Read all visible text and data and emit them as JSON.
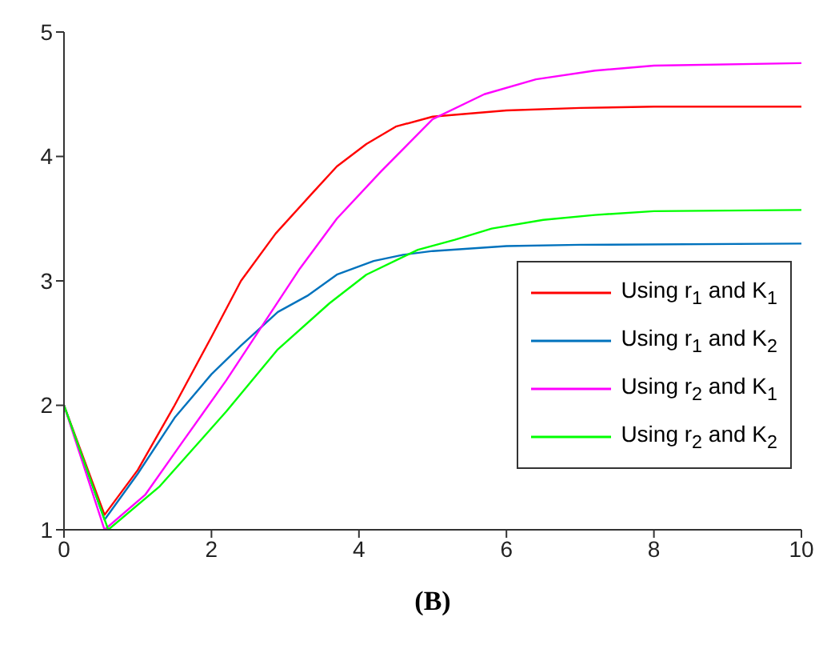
{
  "chart_data": {
    "type": "line",
    "xlabel": "(B)",
    "xlim": [
      0,
      10
    ],
    "xticks": [
      0,
      2,
      4,
      6,
      8,
      10
    ],
    "ylim": [
      1,
      5
    ],
    "yticks": [
      1,
      2,
      3,
      4,
      5
    ],
    "grid": false,
    "legend": "bottom right",
    "marker": "none",
    "line_style": "solid",
    "series": [
      {
        "name": "Using r$_{1}$ and K$_{1}$",
        "color": "#ff0000",
        "x": [
          0,
          0.55,
          1,
          1.5,
          2,
          2.4,
          2.87,
          3.36,
          3.7,
          4.1,
          4.5,
          5,
          6,
          7,
          8,
          10
        ],
        "values": [
          2,
          1.12,
          1.48,
          2.0,
          2.55,
          3.0,
          3.38,
          3.7,
          3.92,
          4.1,
          4.24,
          4.32,
          4.37,
          4.39,
          4.4,
          4.4
        ]
      },
      {
        "name": "Using r$_{1}$ and K$_{2}$",
        "color": "#0072bd",
        "x": [
          0,
          0.55,
          1,
          1.5,
          2,
          2.4,
          2.9,
          3.3,
          3.7,
          4.2,
          4.6,
          5,
          6,
          7,
          10
        ],
        "values": [
          2,
          1.08,
          1.45,
          1.9,
          2.25,
          2.48,
          2.75,
          2.88,
          3.05,
          3.16,
          3.21,
          3.24,
          3.28,
          3.29,
          3.3
        ]
      },
      {
        "name": "Using r$_{2}$ and K$_{1}$",
        "color": "#ff00ff",
        "x": [
          0,
          0.55,
          1.1,
          1.6,
          2.2,
          2.7,
          3.2,
          3.7,
          4.3,
          5,
          5.7,
          6.4,
          7.2,
          8,
          10
        ],
        "values": [
          2,
          1.0,
          1.28,
          1.7,
          2.2,
          2.65,
          3.1,
          3.5,
          3.88,
          4.3,
          4.5,
          4.62,
          4.69,
          4.73,
          4.75
        ]
      },
      {
        "name": "Using r$_{2}$ and K$_{2}$",
        "color": "#00ff00",
        "x": [
          0,
          0.6,
          1.3,
          2.2,
          2.9,
          3.6,
          4.1,
          4.8,
          5.3,
          5.8,
          6.5,
          7.2,
          8,
          10
        ],
        "values": [
          2,
          1.0,
          1.35,
          1.95,
          2.45,
          2.82,
          3.05,
          3.25,
          3.33,
          3.42,
          3.49,
          3.53,
          3.56,
          3.57
        ]
      }
    ]
  }
}
